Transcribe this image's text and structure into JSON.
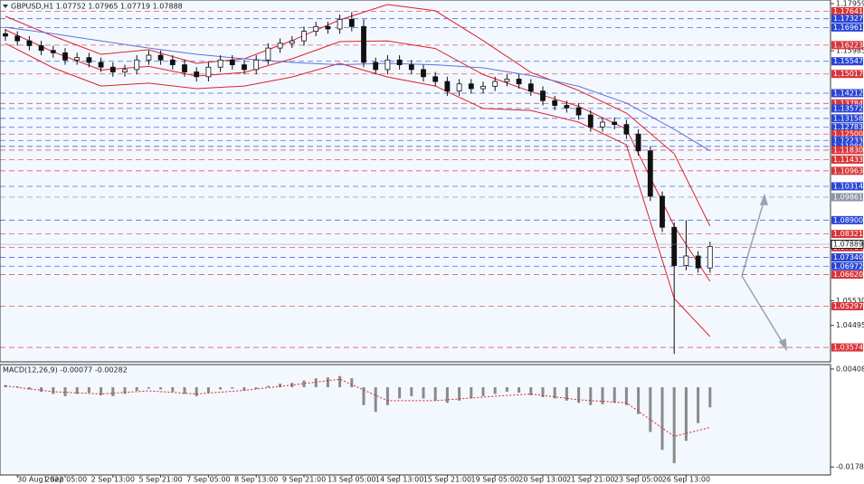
{
  "chart_data": [
    {
      "type": "candlestick",
      "title": "GBPUSD,H1 1.07752 1.07965 1.07719 1.07888",
      "x": [
        null,
        "30 Aug 2022",
        null,
        null,
        null,
        "1 Sep 05:00",
        null,
        null,
        null,
        "2 Sep 13:00",
        null,
        null,
        null,
        "5 Sep 21:00",
        null,
        null,
        null,
        "7 Sep 05:00",
        null,
        null,
        null,
        "8 Sep 13:00",
        null,
        null,
        null,
        "9 Sep 21:00",
        null,
        null,
        null,
        "13 Sep 05:00",
        null,
        null,
        null,
        "14 Sep 13:00",
        null,
        null,
        null,
        "15 Sep 21:00",
        null,
        null,
        null,
        "19 Sep 05:00",
        null,
        null,
        null,
        "20 Sep 13:00",
        null,
        null,
        null,
        "21 Sep 21:00",
        null,
        null,
        null,
        "23 Sep 05:00",
        null,
        null,
        null,
        "26 Sep 13:00",
        null,
        null
      ],
      "open": [
        1.167,
        1.166,
        1.164,
        1.162,
        1.16,
        1.159,
        1.156,
        1.157,
        1.155,
        1.153,
        1.151,
        1.152,
        1.156,
        1.158,
        1.156,
        1.154,
        1.151,
        1.149,
        1.153,
        1.156,
        1.154,
        1.152,
        1.156,
        1.161,
        1.163,
        1.164,
        1.168,
        1.17,
        1.169,
        1.173,
        1.17,
        1.155,
        1.152,
        1.156,
        1.154,
        1.152,
        1.149,
        1.147,
        1.143,
        1.146,
        1.144,
        1.145,
        1.147,
        1.148,
        1.146,
        1.143,
        1.139,
        1.137,
        1.136,
        1.133,
        1.128,
        1.13,
        1.129,
        1.125,
        1.118,
        1.099,
        1.086,
        1.07,
        1.074,
        1.069
      ],
      "high": [
        1.169,
        1.168,
        1.166,
        1.164,
        1.162,
        1.161,
        1.159,
        1.159,
        1.157,
        1.155,
        1.154,
        1.158,
        1.16,
        1.16,
        1.158,
        1.156,
        1.153,
        1.155,
        1.158,
        1.158,
        1.156,
        1.158,
        1.163,
        1.165,
        1.166,
        1.17,
        1.172,
        1.172,
        1.175,
        1.176,
        1.173,
        1.157,
        1.158,
        1.158,
        1.156,
        1.154,
        1.151,
        1.149,
        1.148,
        1.148,
        1.147,
        1.149,
        1.15,
        1.15,
        1.148,
        1.145,
        1.141,
        1.139,
        1.138,
        1.135,
        1.132,
        1.132,
        1.131,
        1.127,
        1.12,
        1.101,
        1.088,
        1.089,
        1.076,
        1.08
      ],
      "low": [
        1.164,
        1.162,
        1.16,
        1.158,
        1.157,
        1.154,
        1.154,
        1.153,
        1.151,
        1.149,
        1.149,
        1.15,
        1.154,
        1.154,
        1.152,
        1.149,
        1.147,
        1.147,
        1.151,
        1.152,
        1.15,
        1.15,
        1.154,
        1.159,
        1.161,
        1.162,
        1.166,
        1.167,
        1.167,
        1.168,
        1.153,
        1.15,
        1.15,
        1.152,
        1.15,
        1.147,
        1.145,
        1.141,
        1.141,
        1.142,
        1.142,
        1.143,
        1.145,
        1.144,
        1.141,
        1.137,
        1.135,
        1.134,
        1.131,
        1.126,
        1.126,
        1.127,
        1.123,
        1.116,
        1.097,
        1.084,
        1.033,
        1.068,
        1.067,
        1.067
      ],
      "close": [
        1.166,
        1.164,
        1.162,
        1.16,
        1.159,
        1.156,
        1.157,
        1.155,
        1.153,
        1.151,
        1.152,
        1.156,
        1.158,
        1.156,
        1.154,
        1.151,
        1.149,
        1.153,
        1.156,
        1.154,
        1.152,
        1.156,
        1.161,
        1.163,
        1.164,
        1.168,
        1.17,
        1.169,
        1.173,
        1.17,
        1.155,
        1.152,
        1.156,
        1.154,
        1.152,
        1.149,
        1.147,
        1.143,
        1.146,
        1.144,
        1.145,
        1.147,
        1.148,
        1.146,
        1.143,
        1.139,
        1.137,
        1.136,
        1.133,
        1.128,
        1.13,
        1.129,
        1.125,
        1.118,
        1.099,
        1.086,
        1.07,
        1.074,
        1.069,
        1.078
      ],
      "ylim": [
        1.0297,
        1.1811
      ],
      "yticks": [
        1.17959,
        1.15985,
        {
          "value": 1.0553,
          "label": "1.05530"
        },
        1.04495
      ],
      "last_price": 1.07889,
      "levels": [
        {
          "value": 1.17641,
          "color": "#d8363a"
        },
        {
          "value": 1.17327,
          "color": "#2a45d4"
        },
        {
          "value": 1.16961,
          "color": "#2a45d4"
        },
        {
          "value": 1.16223,
          "color": "#d8363a"
        },
        {
          "value": 1.15547,
          "color": "#2a45d4"
        },
        {
          "value": 1.15017,
          "color": "#d8363a"
        },
        {
          "value": 1.14212,
          "color": "#2a45d4"
        },
        {
          "value": 1.13784,
          "color": "#d8363a"
        },
        {
          "value": 1.13572,
          "color": "#2a45d4"
        },
        {
          "value": 1.13158,
          "color": "#2a45d4"
        },
        {
          "value": 1.12783,
          "color": "#2a45d4"
        },
        {
          "value": 1.125,
          "label": "1.12500",
          "color": "#d8363a"
        },
        {
          "value": 1.12233,
          "color": "#2a45d4"
        },
        {
          "value": 1.11986,
          "color": "#2a45d4"
        },
        {
          "value": 1.1183,
          "label": "1.11830",
          "color": "#d8363a"
        },
        {
          "value": 1.11433,
          "color": "#d8363a"
        },
        {
          "value": 1.10963,
          "color": "#d8363a"
        },
        {
          "value": 1.10314,
          "color": "#2a45d4"
        },
        {
          "value": 1.09861,
          "color": "#8a94a6"
        },
        {
          "value": 1.089,
          "label": "1.08900",
          "color": "#2a45d4"
        },
        {
          "value": 1.08321,
          "color": "#d8363a"
        },
        {
          "value": 1.07764,
          "color": "#d8363a"
        },
        {
          "value": 1.0734,
          "label": "1.07340",
          "color": "#2a45d4"
        },
        {
          "value": 1.06972,
          "color": "#2a45d4"
        },
        {
          "value": 1.0662,
          "label": "1.06620",
          "color": "#d8363a"
        },
        {
          "value": 1.05297,
          "color": "#d8363a"
        },
        {
          "value": 1.03574,
          "color": "#d8363a"
        }
      ],
      "series": [
        {
          "color": "#e0202a",
          "x": [
            0,
            4,
            8,
            12,
            16,
            20,
            24,
            28,
            32,
            36,
            40,
            44,
            48,
            52,
            56,
            59
          ],
          "values": [
            1.1743,
            1.166,
            1.1584,
            1.1603,
            1.1546,
            1.1565,
            1.1641,
            1.1728,
            1.1792,
            1.1766,
            1.1641,
            1.1508,
            1.1433,
            1.1338,
            1.1168,
            1.0865
          ]
        },
        {
          "color": "#e0202a",
          "x": [
            0,
            4,
            8,
            12,
            16,
            20,
            24,
            28,
            32,
            36,
            40,
            44,
            48,
            52,
            56,
            59
          ],
          "values": [
            1.1686,
            1.1594,
            1.1518,
            1.1533,
            1.1493,
            1.1508,
            1.1565,
            1.1637,
            1.164,
            1.1608,
            1.1499,
            1.1428,
            1.1366,
            1.1271,
            1.0865,
            1.0634
          ]
        },
        {
          "color": "#e0202a",
          "x": [
            0,
            4,
            8,
            12,
            16,
            20,
            24,
            28,
            32,
            36,
            40,
            44,
            48,
            52,
            56,
            59
          ],
          "values": [
            1.1629,
            1.1527,
            1.1451,
            1.1463,
            1.144,
            1.1451,
            1.1489,
            1.1546,
            1.1489,
            1.1451,
            1.1357,
            1.1349,
            1.13,
            1.1205,
            1.0562,
            1.0403
          ]
        },
        {
          "color": "#6272d8",
          "x": [
            0,
            4,
            8,
            12,
            16,
            20,
            24,
            28,
            32,
            36,
            40,
            44,
            48,
            52,
            56,
            59
          ],
          "values": [
            1.1697,
            1.167,
            1.164,
            1.161,
            1.1584,
            1.1565,
            1.155,
            1.154,
            1.1546,
            1.154,
            1.1527,
            1.1495,
            1.145,
            1.138,
            1.127,
            1.118
          ]
        }
      ]
    },
    {
      "type": "macd",
      "title": "MACD(12,26,9) -0.00077 -0.00282",
      "values": [
        0.0005,
        0.0002,
        -0.0005,
        -0.001,
        -0.0015,
        -0.002,
        -0.0015,
        -0.0012,
        -0.0018,
        -0.002,
        -0.0015,
        -0.0008,
        -0.0003,
        -0.0005,
        -0.001,
        -0.0015,
        -0.002,
        -0.0012,
        -0.0005,
        -0.0003,
        -0.0008,
        -0.0004,
        0.0003,
        0.0008,
        0.001,
        0.0015,
        0.002,
        0.0022,
        0.0025,
        0.002,
        -0.004,
        -0.0055,
        -0.004,
        -0.0025,
        -0.002,
        -0.0025,
        -0.003,
        -0.0035,
        -0.003,
        -0.0025,
        -0.002,
        -0.0015,
        -0.001,
        -0.0012,
        -0.0018,
        -0.0022,
        -0.0025,
        -0.003,
        -0.0035,
        -0.004,
        -0.0038,
        -0.0035,
        -0.004,
        -0.006,
        -0.01,
        -0.014,
        -0.017,
        -0.012,
        -0.008,
        -0.0045
      ],
      "color": "#8a8a8a",
      "signal": {
        "color": "#e0202a",
        "x": [
          0,
          4,
          8,
          12,
          16,
          20,
          24,
          28,
          32,
          36,
          40,
          44,
          48,
          52,
          56,
          59
        ],
        "values": [
          0.0003,
          -0.001,
          -0.0015,
          -0.0008,
          -0.0015,
          -0.0007,
          0.0005,
          0.0018,
          -0.003,
          -0.003,
          -0.0022,
          -0.0015,
          -0.0028,
          -0.0035,
          -0.011,
          -0.009
        ]
      },
      "ylim": [
        -0.01962,
        0.00507
      ],
      "yticks": [
        0.00408,
        -0.01784
      ]
    }
  ]
}
